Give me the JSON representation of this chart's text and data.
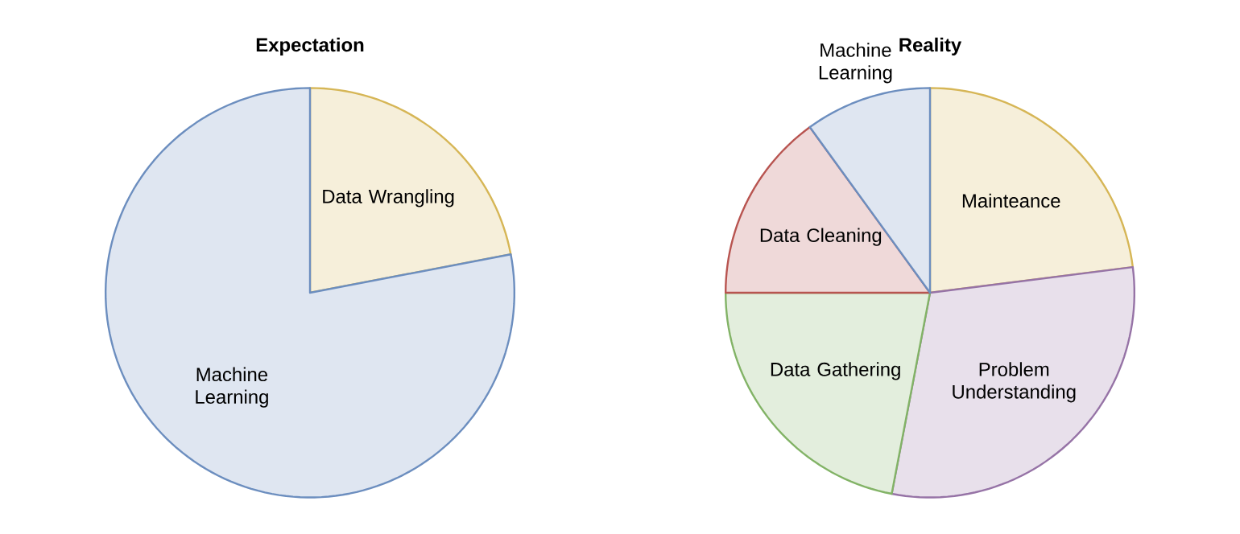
{
  "chart_data": [
    {
      "type": "pie",
      "title": "Expectation",
      "categories": [
        "Data Wrangling",
        "Machine Learning"
      ],
      "values": [
        22,
        78
      ],
      "colors": [
        "#d6b656",
        "#6c8ebf"
      ]
    },
    {
      "type": "pie",
      "title": "Reality",
      "categories": [
        "Mainteance",
        "Problem Understanding",
        "Data Gathering",
        "Data Cleaning",
        "Machine Learning"
      ],
      "values": [
        23,
        30,
        22,
        15,
        10
      ],
      "colors": [
        "#d6b656",
        "#9673a6",
        "#82b366",
        "#b85450",
        "#6c8ebf"
      ]
    }
  ]
}
